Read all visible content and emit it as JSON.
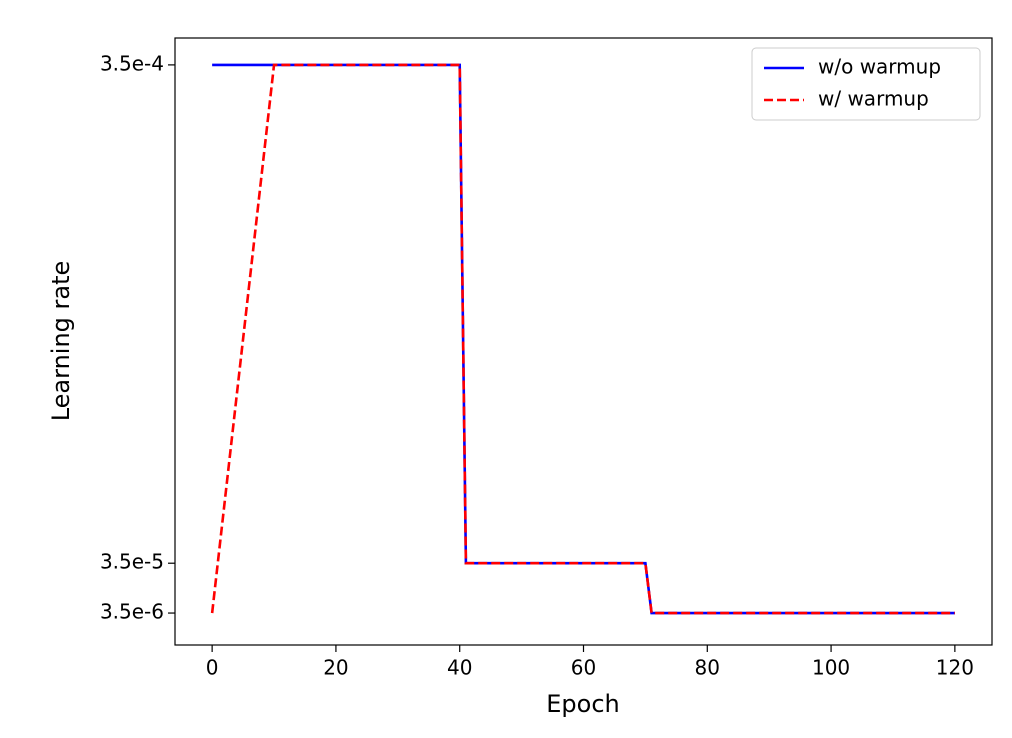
{
  "chart_data": {
    "type": "line",
    "xlabel": "Epoch",
    "ylabel": "Learning rate",
    "series": [
      {
        "name": "w/o warmup",
        "color": "#0000ff",
        "linestyle": "solid",
        "x": [
          0,
          40,
          41,
          70,
          71,
          120
        ],
        "values": [
          0.00035,
          0.00035,
          3.5e-05,
          3.5e-05,
          3.5e-06,
          3.5e-06
        ]
      },
      {
        "name": "w/ warmup",
        "color": "#ff0000",
        "linestyle": "dashed",
        "x": [
          0,
          10,
          40,
          41,
          70,
          71,
          120
        ],
        "values": [
          3.5e-06,
          0.00035,
          0.00035,
          3.5e-05,
          3.5e-05,
          3.5e-06,
          3.5e-06
        ]
      }
    ],
    "xlim": [
      -6,
      126
    ],
    "xticks": [
      0,
      20,
      40,
      60,
      80,
      100,
      120
    ],
    "ylim": [
      -1.67e-05,
      0.000367
    ],
    "yticks": [
      {
        "value": 3.5e-06,
        "label": "3.5e-6"
      },
      {
        "value": 3.5e-05,
        "label": "3.5e-5"
      },
      {
        "value": 0.00035,
        "label": "3.5e-4"
      }
    ],
    "legend": "upper right"
  }
}
